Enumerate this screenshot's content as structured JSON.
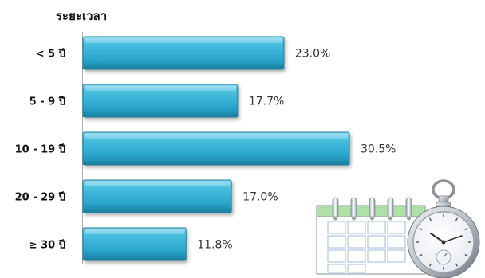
{
  "chart_data": {
    "type": "bar",
    "orientation": "horizontal",
    "title": "ระยะเวลา",
    "categories": [
      "< 5 ปี",
      "5 - 9 ปี",
      "10 - 19 ปี",
      "20 - 29 ปี",
      "≥  30 ปี"
    ],
    "values": [
      23.0,
      17.7,
      30.5,
      17.0,
      11.8
    ],
    "value_labels": [
      "23.0%",
      "17.7%",
      "30.5%",
      "17.0%",
      "11.8%"
    ],
    "unit": "%",
    "xlim": [
      0,
      40
    ],
    "grid": false,
    "legend": "none",
    "bar_color": "#3bb4d6",
    "bar_color_dark": "#1f7f9e"
  },
  "illustration": {
    "icons": [
      "calendar-icon",
      "pocket-watch-icon"
    ]
  }
}
